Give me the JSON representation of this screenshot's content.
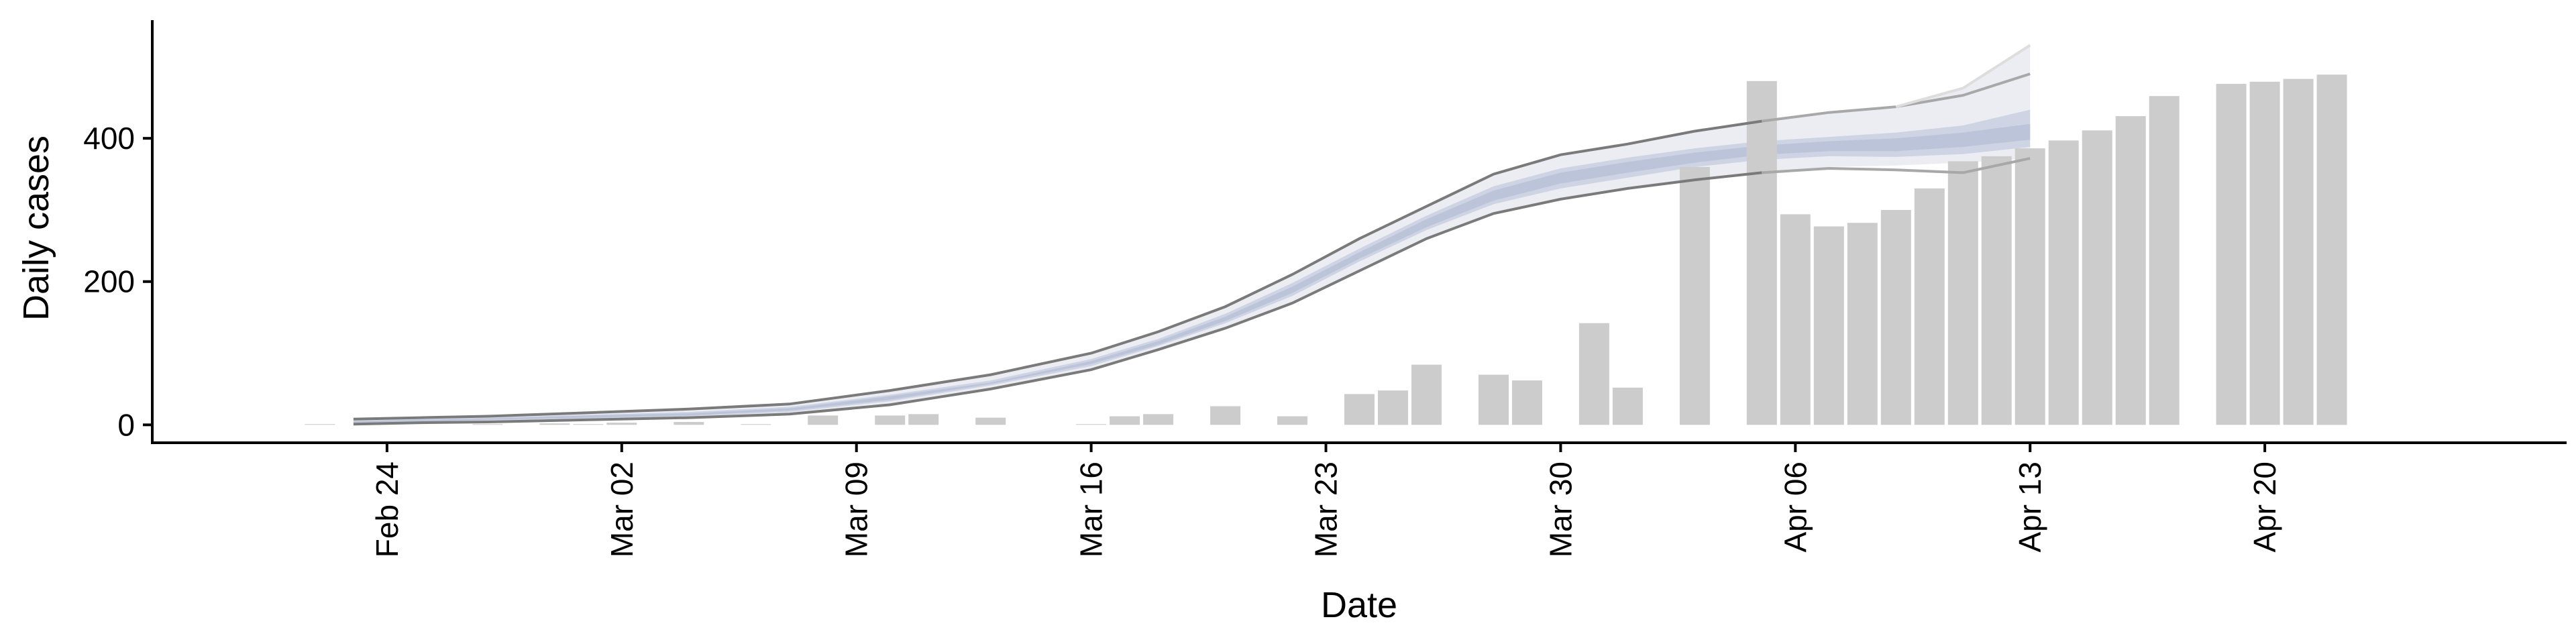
{
  "chart_data": {
    "type": "bar",
    "xlabel": "Date",
    "ylabel": "Daily cases",
    "ylim": [
      -25,
      565
    ],
    "yticks": [
      0,
      200,
      400
    ],
    "xlim": [
      "2020-02-17",
      "2020-04-29"
    ],
    "xticks": [
      {
        "date": "2020-02-24",
        "label": "Feb 24"
      },
      {
        "date": "2020-03-02",
        "label": "Mar 02"
      },
      {
        "date": "2020-03-09",
        "label": "Mar 09"
      },
      {
        "date": "2020-03-16",
        "label": "Mar 16"
      },
      {
        "date": "2020-03-23",
        "label": "Mar 23"
      },
      {
        "date": "2020-03-30",
        "label": "Mar 30"
      },
      {
        "date": "2020-04-06",
        "label": "Apr 06"
      },
      {
        "date": "2020-04-13",
        "label": "Apr 13"
      },
      {
        "date": "2020-04-20",
        "label": "Apr 20"
      }
    ],
    "bars": {
      "name": "",
      "dates": [
        "2020-02-22",
        "2020-02-23",
        "2020-02-24",
        "2020-02-25",
        "2020-02-26",
        "2020-02-27",
        "2020-02-28",
        "2020-02-29",
        "2020-03-01",
        "2020-03-02",
        "2020-03-03",
        "2020-03-04",
        "2020-03-05",
        "2020-03-06",
        "2020-03-07",
        "2020-03-08",
        "2020-03-09",
        "2020-03-10",
        "2020-03-11",
        "2020-03-12",
        "2020-03-13",
        "2020-03-14",
        "2020-03-15",
        "2020-03-16",
        "2020-03-17",
        "2020-03-18",
        "2020-03-19",
        "2020-03-20",
        "2020-03-21",
        "2020-03-22",
        "2020-03-23",
        "2020-03-24",
        "2020-03-25",
        "2020-03-26",
        "2020-03-27",
        "2020-03-28",
        "2020-03-29",
        "2020-03-30",
        "2020-03-31",
        "2020-04-01",
        "2020-04-02",
        "2020-04-03",
        "2020-04-04",
        "2020-04-05",
        "2020-04-06",
        "2020-04-07",
        "2020-04-08",
        "2020-04-09",
        "2020-04-10",
        "2020-04-11",
        "2020-04-12",
        "2020-04-13",
        "2020-04-14",
        "2020-04-15",
        "2020-04-16",
        "2020-04-17",
        "2020-04-18",
        "2020-04-19",
        "2020-04-20",
        "2020-04-21",
        "2020-04-22"
      ],
      "values": [
        1,
        0,
        0,
        0,
        0,
        1,
        0,
        2,
        1,
        3,
        0,
        4,
        0,
        1,
        0,
        13,
        0,
        13,
        15,
        0,
        10,
        0,
        0,
        1,
        12,
        15,
        0,
        26,
        0,
        12,
        0,
        43,
        48,
        84,
        0,
        70,
        62,
        0,
        142,
        52,
        0,
        360,
        0,
        480,
        294,
        277,
        282,
        300,
        330,
        368,
        375,
        386,
        397,
        411,
        431,
        459,
        0,
        476,
        479,
        483,
        489
      ]
    },
    "envelope": {
      "dates": [
        "2020-02-23",
        "2020-02-25",
        "2020-02-27",
        "2020-03-01",
        "2020-03-04",
        "2020-03-07",
        "2020-03-10",
        "2020-03-13",
        "2020-03-16",
        "2020-03-18",
        "2020-03-20",
        "2020-03-22",
        "2020-03-24",
        "2020-03-26",
        "2020-03-28",
        "2020-03-30",
        "2020-04-01",
        "2020-04-03",
        "2020-04-05",
        "2020-04-07",
        "2020-04-09",
        "2020-04-11",
        "2020-04-13"
      ],
      "upper": [
        8,
        10,
        12,
        17,
        22,
        29,
        48,
        70,
        100,
        130,
        165,
        210,
        260,
        305,
        350,
        377,
        392,
        410,
        424,
        436,
        444,
        460,
        490
      ],
      "lower": [
        1,
        3,
        4,
        7,
        10,
        15,
        28,
        50,
        77,
        105,
        135,
        170,
        215,
        260,
        295,
        315,
        330,
        342,
        352,
        358,
        356,
        352,
        372
      ],
      "outer_upper": [
        8,
        10,
        12,
        17,
        22,
        29,
        48,
        70,
        100,
        130,
        165,
        210,
        260,
        305,
        350,
        377,
        392,
        410,
        424,
        436,
        444,
        470,
        530
      ],
      "outer_lower": [
        1,
        3,
        4,
        7,
        10,
        15,
        28,
        50,
        77,
        105,
        135,
        170,
        215,
        260,
        295,
        315,
        330,
        342,
        352,
        360,
        362,
        366,
        372
      ],
      "mid_upper": [
        6,
        8,
        10,
        14,
        18,
        25,
        42,
        62,
        92,
        120,
        155,
        198,
        246,
        292,
        333,
        358,
        373,
        386,
        396,
        402,
        408,
        418,
        440
      ],
      "mid_lower": [
        2,
        4,
        6,
        9,
        12,
        18,
        33,
        55,
        82,
        110,
        142,
        180,
        228,
        272,
        308,
        330,
        345,
        360,
        370,
        375,
        374,
        378,
        388
      ],
      "inner_upper": [
        5,
        7,
        9,
        13,
        16,
        23,
        40,
        59,
        89,
        117,
        151,
        193,
        241,
        287,
        327,
        352,
        367,
        380,
        390,
        396,
        400,
        408,
        420
      ],
      "inner_lower": [
        3,
        5,
        7,
        10,
        13,
        20,
        35,
        57,
        85,
        112,
        145,
        184,
        232,
        276,
        313,
        337,
        352,
        366,
        377,
        382,
        382,
        388,
        398
      ]
    }
  }
}
